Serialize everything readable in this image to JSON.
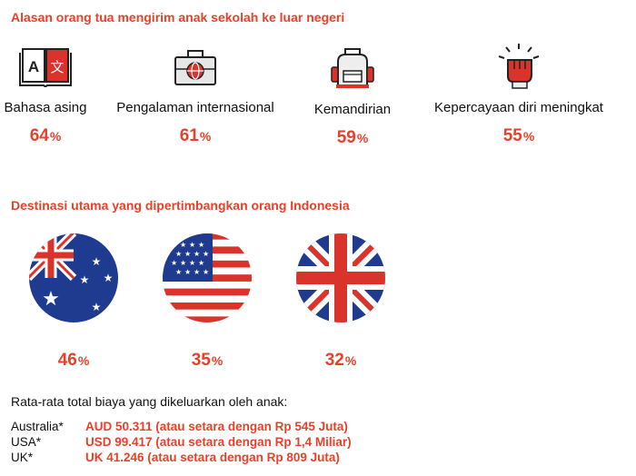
{
  "reasons": {
    "title": "Alasan orang tua mengirim anak sekolah ke luar negeri",
    "items": [
      {
        "label": "Bahasa asing",
        "value": "64",
        "icon": "language-book-icon"
      },
      {
        "label": "Pengalaman internasional",
        "value": "61",
        "icon": "briefcase-globe-icon"
      },
      {
        "label": "Kemandirian",
        "value": "59",
        "icon": "backpack-icon"
      },
      {
        "label": "Kepercayaan diri meningkat",
        "value": "55",
        "icon": "raised-fist-icon"
      }
    ],
    "percent_symbol": "%",
    "icon_glyphs": {
      "latin": "A",
      "chinese": "文"
    }
  },
  "destinations": {
    "title": "Destinasi utama yang dipertimbangkan orang Indonesia",
    "items": [
      {
        "country": "Australia",
        "value": "46",
        "icon": "australia-flag-icon"
      },
      {
        "country": "USA",
        "value": "35",
        "icon": "usa-flag-icon"
      },
      {
        "country": "UK",
        "value": "32",
        "icon": "uk-flag-icon"
      }
    ]
  },
  "costs": {
    "title": "Rata-rata total biaya yang dikeluarkan oleh anak:",
    "rows": [
      {
        "country": "Australia*",
        "value": "AUD 50.311 (atau setara dengan Rp 545 Juta)"
      },
      {
        "country": "USA*",
        "value": "USD 99.417 (atau setara dengan Rp 1,4 Miliar)"
      },
      {
        "country": "UK*",
        "value": "UK 41.246 (atau setara dengan Rp 809 Juta)"
      }
    ]
  },
  "colors": {
    "accent": "#e8412a",
    "icon_red": "#d9332b",
    "text": "#111111",
    "navy": "#1f3b8f"
  }
}
